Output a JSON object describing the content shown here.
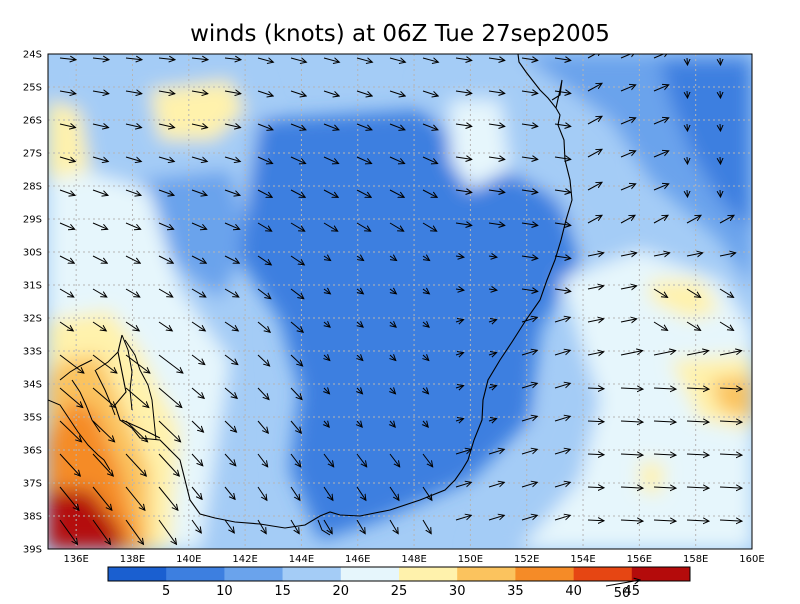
{
  "title": "winds (knots) at 06Z Tue 27sep2005",
  "lat_labels": [
    "24S",
    "25S",
    "26S",
    "27S",
    "28S",
    "29S",
    "30S",
    "31S",
    "32S",
    "33S",
    "34S",
    "35S",
    "36S",
    "37S",
    "38S",
    "39S"
  ],
  "lon_labels": [
    "136E",
    "138E",
    "140E",
    "142E",
    "144E",
    "146E",
    "148E",
    "150E",
    "152E",
    "154E",
    "156E",
    "158E",
    "160E"
  ],
  "colorbar": {
    "levels": [
      "5",
      "10",
      "15",
      "20",
      "25",
      "30",
      "35",
      "40",
      "45"
    ],
    "colors": [
      "#1a5fd0",
      "#3d7fe0",
      "#6aa3ec",
      "#a4ccf6",
      "#e6f6fc",
      "#fff2ac",
      "#fbc35e",
      "#f58b27",
      "#e64613",
      "#b40b0b"
    ]
  },
  "reference_vector": {
    "label": "50"
  },
  "chart_data": {
    "type": "heatmap",
    "title": "winds (knots) at 06Z Tue 27sep2005",
    "lon_range": [
      "135E",
      "160E"
    ],
    "lat_range": [
      "24S",
      "39S"
    ],
    "grid": true,
    "field_samples": [
      {
        "lon": 136.5,
        "lat": 26.6,
        "speed": 27
      },
      {
        "lon": 139.5,
        "lat": 25.8,
        "speed": 26
      },
      {
        "lon": 143.0,
        "lat": 27.0,
        "speed": 12
      },
      {
        "lon": 146.0,
        "lat": 32.5,
        "speed": 5
      },
      {
        "lon": 150.0,
        "lat": 26.0,
        "speed": 21
      },
      {
        "lon": 154.0,
        "lat": 25.0,
        "speed": 12
      },
      {
        "lon": 156.5,
        "lat": 31.5,
        "speed": 29
      },
      {
        "lon": 159.3,
        "lat": 34.5,
        "speed": 32
      },
      {
        "lon": 137.0,
        "lat": 38.0,
        "speed": 44
      },
      {
        "lon": 136.6,
        "lat": 34.5,
        "speed": 37
      },
      {
        "lon": 141.0,
        "lat": 35.5,
        "speed": 22
      },
      {
        "lon": 156.0,
        "lat": 36.7,
        "speed": 28
      }
    ]
  }
}
